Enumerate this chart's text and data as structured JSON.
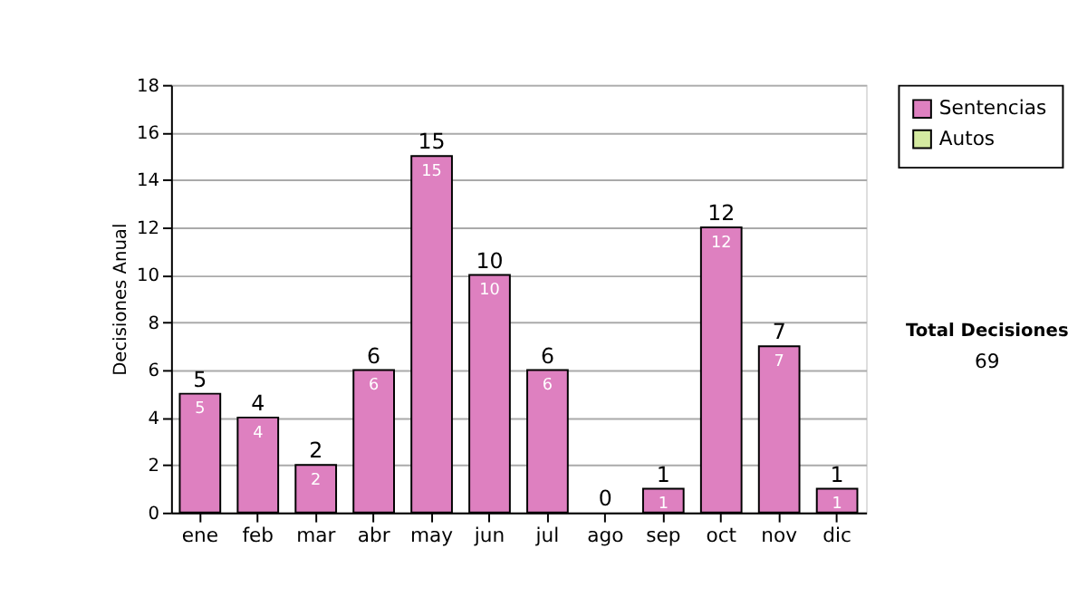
{
  "chart_data": {
    "type": "bar",
    "ylabel": "Decisiones Anual",
    "categories": [
      "ene",
      "feb",
      "mar",
      "abr",
      "may",
      "jun",
      "jul",
      "ago",
      "sep",
      "oct",
      "nov",
      "dic"
    ],
    "series": [
      {
        "name": "Sentencias",
        "color": "#de80c0",
        "values": [
          5,
          4,
          2,
          6,
          15,
          10,
          6,
          0,
          1,
          12,
          7,
          1
        ],
        "value_labels": [
          "5",
          "4",
          "2",
          "6",
          "15",
          "10",
          "6",
          null,
          "1",
          "12",
          "7",
          "1"
        ]
      },
      {
        "name": "Autos",
        "color": "#d4eaa0",
        "values": [
          0,
          0,
          0,
          0,
          0,
          0,
          0,
          0,
          0,
          0,
          0,
          0
        ]
      }
    ],
    "stacked": true,
    "totals": [
      "5",
      "4",
      "2",
      "6",
      "15",
      "10",
      "6",
      "0",
      "1",
      "12",
      "7",
      "1"
    ],
    "ylim": [
      0,
      18
    ],
    "yticks": [
      0,
      2,
      4,
      6,
      8,
      10,
      12,
      14,
      16,
      18
    ],
    "grid": "y",
    "legend": "right",
    "annotations": [
      "Total Decisiones",
      "69"
    ]
  }
}
